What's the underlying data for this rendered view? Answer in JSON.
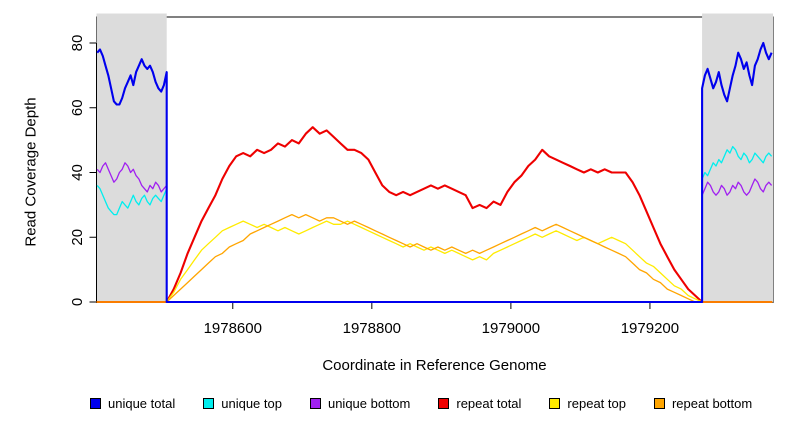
{
  "chart_data": {
    "type": "line",
    "title": "",
    "xlabel": "Coordinate in Reference Genome",
    "ylabel": "Read Coverage Depth",
    "xlim": [
      1978404,
      1979377
    ],
    "ylim": [
      0,
      88
    ],
    "xticks": [
      1978600,
      1978800,
      1979000,
      1979200
    ],
    "yticks": [
      0,
      20,
      40,
      60,
      80
    ],
    "grid": false,
    "legend_position": "bottom",
    "box_color": "#000000",
    "shaded_regions": [
      {
        "x0": 1978404,
        "x1": 1978505,
        "color": "#DCDCDC",
        "label": "unique flank left"
      },
      {
        "x0": 1979275,
        "x1": 1979377,
        "color": "#DCDCDC",
        "label": "unique flank right"
      }
    ],
    "series": [
      {
        "name": "unique top",
        "color": "#00EEEE",
        "lwd": 1.3,
        "segments": [
          {
            "x0": 1978405,
            "dx": 4,
            "v": [
              36,
              35,
              33,
              31,
              29,
              28,
              27,
              27,
              29,
              31,
              30,
              29,
              31,
              33,
              31,
              30,
              32,
              33,
              31,
              30,
              32,
              33,
              32,
              31,
              33,
              35
            ]
          },
          {
            "x0": 1978505,
            "dx": 0,
            "v": [
              0
            ]
          },
          {
            "x0": 1979275,
            "dx": 0,
            "v": [
              0
            ]
          },
          {
            "x0": 1979275,
            "dx": 4,
            "v": [
              38,
              40,
              39,
              41,
              43,
              42,
              44,
              43,
              45,
              47,
              46,
              48,
              47,
              45,
              44,
              46,
              45,
              43,
              44,
              46,
              45,
              44,
              43,
              45,
              46,
              45
            ]
          }
        ]
      },
      {
        "name": "unique bottom",
        "color": "#A020F0",
        "lwd": 1.3,
        "segments": [
          {
            "x0": 1978405,
            "dx": 4,
            "v": [
              41,
              40,
              42,
              43,
              41,
              39,
              37,
              38,
              40,
              41,
              43,
              42,
              40,
              41,
              39,
              38,
              36,
              35,
              34,
              36,
              35,
              37,
              36,
              34,
              35,
              36
            ]
          },
          {
            "x0": 1978505,
            "dx": 0,
            "v": [
              0
            ]
          },
          {
            "x0": 1979275,
            "dx": 0,
            "v": [
              0
            ]
          },
          {
            "x0": 1979275,
            "dx": 4,
            "v": [
              33,
              35,
              37,
              36,
              34,
              33,
              34,
              36,
              35,
              33,
              34,
              36,
              35,
              37,
              36,
              34,
              33,
              34,
              36,
              38,
              37,
              35,
              34,
              36,
              37,
              36
            ]
          }
        ]
      },
      {
        "name": "repeat total",
        "color": "#EE0000",
        "lwd": 2.1,
        "segments": [
          {
            "x0": 1978404,
            "dx": 0,
            "v": [
              0
            ]
          },
          {
            "x0": 1978505,
            "dx": 10,
            "v": [
              0,
              4,
              9,
              15,
              20,
              25,
              29,
              33,
              38,
              42,
              45,
              46,
              45,
              47,
              46,
              47,
              49,
              48,
              50,
              49,
              52,
              54,
              52,
              53,
              51,
              49,
              47,
              47,
              46,
              44,
              40,
              36,
              34,
              33,
              34,
              33,
              34,
              35,
              36,
              35,
              36,
              35,
              34,
              33,
              29,
              30,
              29,
              31,
              30,
              34,
              37,
              39,
              42,
              44,
              47,
              45,
              44,
              43,
              42,
              41,
              40,
              41,
              40,
              41,
              40,
              40,
              40,
              37,
              33,
              28,
              23,
              18,
              14,
              10,
              7,
              4,
              2,
              0
            ]
          },
          {
            "x0": 1979376,
            "dx": 0,
            "v": [
              0
            ]
          }
        ]
      },
      {
        "name": "repeat top",
        "color": "#FFEB00",
        "lwd": 1.3,
        "segments": [
          {
            "x0": 1978404,
            "dx": 0,
            "v": [
              0
            ]
          },
          {
            "x0": 1978505,
            "dx": 10,
            "v": [
              0,
              3,
              7,
              10,
              13,
              16,
              18,
              20,
              22,
              23,
              24,
              25,
              24,
              23,
              24,
              23,
              22,
              23,
              22,
              21,
              22,
              23,
              24,
              25,
              24,
              24,
              25,
              24,
              23,
              22,
              21,
              20,
              19,
              18,
              17,
              18,
              17,
              16,
              17,
              16,
              15,
              16,
              15,
              14,
              13,
              14,
              13,
              15,
              16,
              17,
              18,
              19,
              20,
              21,
              20,
              21,
              22,
              21,
              20,
              19,
              20,
              19,
              18,
              19,
              20,
              19,
              18,
              16,
              14,
              12,
              11,
              9,
              7,
              5,
              4,
              2,
              1,
              0
            ]
          },
          {
            "x0": 1979376,
            "dx": 0,
            "v": [
              0
            ]
          }
        ]
      },
      {
        "name": "repeat bottom",
        "color": "#FFA500",
        "lwd": 1.3,
        "segments": [
          {
            "x0": 1978404,
            "dx": 0,
            "v": [
              0
            ]
          },
          {
            "x0": 1978505,
            "dx": 10,
            "v": [
              0,
              2,
              4,
              6,
              8,
              10,
              12,
              14,
              15,
              17,
              18,
              19,
              21,
              22,
              23,
              24,
              25,
              26,
              27,
              26,
              27,
              26,
              25,
              26,
              26,
              25,
              24,
              25,
              24,
              23,
              22,
              21,
              20,
              19,
              18,
              17,
              18,
              17,
              16,
              17,
              16,
              17,
              16,
              15,
              16,
              15,
              16,
              17,
              18,
              19,
              20,
              21,
              22,
              23,
              22,
              23,
              24,
              23,
              22,
              21,
              20,
              19,
              18,
              17,
              16,
              15,
              14,
              12,
              10,
              9,
              7,
              6,
              4,
              3,
              2,
              1,
              0,
              0
            ]
          },
          {
            "x0": 1979376,
            "dx": 0,
            "v": [
              0
            ]
          }
        ]
      },
      {
        "name": "unique total",
        "color": "#0000EE",
        "lwd": 2.1,
        "segments": [
          {
            "x0": 1978405,
            "dx": 4,
            "v": [
              77,
              78,
              76,
              73,
              70,
              66,
              62,
              61,
              61,
              63,
              66,
              68,
              70,
              67,
              71,
              73,
              75,
              73,
              72,
              73,
              71,
              68,
              66,
              65,
              67,
              71
            ]
          },
          {
            "x0": 1978505,
            "dx": 0,
            "v": [
              0
            ]
          },
          {
            "x0": 1979275,
            "dx": 0,
            "v": [
              0
            ]
          },
          {
            "x0": 1979275,
            "dx": 4,
            "v": [
              66,
              70,
              72,
              69,
              66,
              68,
              71,
              67,
              64,
              62,
              66,
              70,
              73,
              77,
              75,
              72,
              74,
              70,
              67,
              73,
              75,
              78,
              80,
              77,
              75,
              77
            ]
          }
        ]
      }
    ],
    "legend": [
      {
        "label": "unique total",
        "color": "#0000EE"
      },
      {
        "label": "unique top",
        "color": "#00EEEE"
      },
      {
        "label": "unique bottom",
        "color": "#A020F0"
      },
      {
        "label": "repeat total",
        "color": "#EE0000"
      },
      {
        "label": "repeat top",
        "color": "#FFEB00"
      },
      {
        "label": "repeat bottom",
        "color": "#FFA500"
      }
    ]
  }
}
